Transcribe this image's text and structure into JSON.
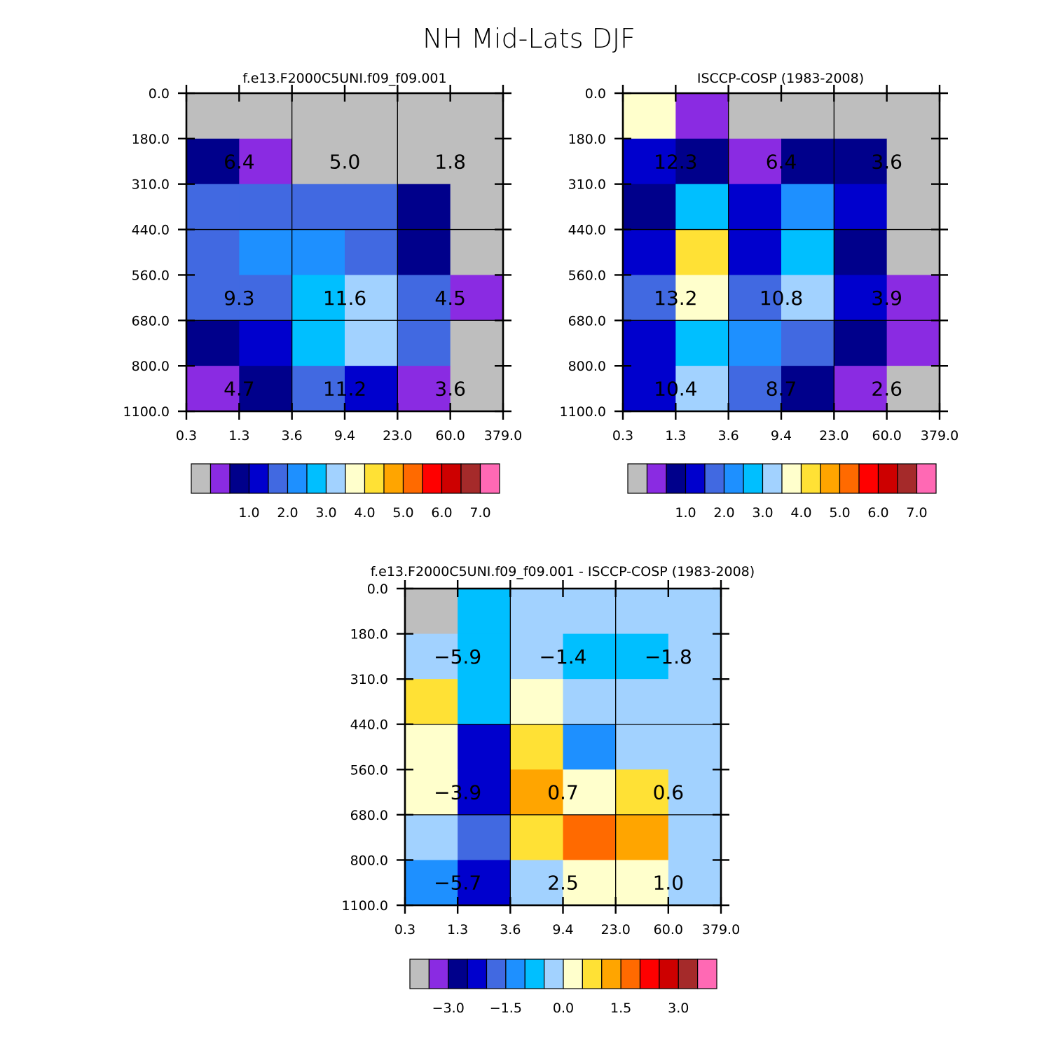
{
  "figure": {
    "title": "NH Mid-Lats DJF"
  },
  "x_tick_labels": [
    "0.3",
    "1.3",
    "3.6",
    "9.4",
    "23.0",
    "60.0",
    "379.0"
  ],
  "y_tick_labels": [
    "0.0",
    "180.0",
    "310.0",
    "440.0",
    "560.0",
    "680.0",
    "800.0",
    "1100.0"
  ],
  "palette": [
    "#bebebe",
    "#8a2be2",
    "#00008b",
    "#0000cd",
    "#4169e1",
    "#1e90ff",
    "#00bfff",
    "#a2d2ff",
    "#ffffcc",
    "#ffe135",
    "#ffa500",
    "#ff6a00",
    "#ff0000",
    "#cd0000",
    "#a52a2a",
    "#ff69b4"
  ],
  "chart_data": [
    {
      "type": "heatmap",
      "title": "f.e13.F2000C5UNI.f09_f09.001",
      "xlabel": "",
      "ylabel": "",
      "x_bins": [
        "0.3",
        "1.3",
        "3.6",
        "9.4",
        "23.0",
        "60.0",
        "379.0"
      ],
      "y_bins": [
        "0.0",
        "180.0",
        "310.0",
        "440.0",
        "560.0",
        "680.0",
        "800.0",
        "1100.0"
      ],
      "cell_color_index": [
        [
          0,
          0,
          0,
          0,
          0,
          0
        ],
        [
          2,
          1,
          0,
          0,
          0,
          0
        ],
        [
          4,
          4,
          4,
          4,
          2,
          0
        ],
        [
          4,
          5,
          5,
          4,
          2,
          0
        ],
        [
          4,
          4,
          6,
          7,
          4,
          1
        ],
        [
          2,
          3,
          6,
          7,
          4,
          0
        ],
        [
          1,
          2,
          4,
          3,
          1,
          0
        ]
      ],
      "block_labels": [
        [
          "6.4",
          "5.0",
          "1.8"
        ],
        [
          "9.3",
          "11.6",
          "4.5"
        ],
        [
          "4.7",
          "11.2",
          "3.6"
        ]
      ],
      "colorbar_labels": [
        "1.0",
        "2.0",
        "3.0",
        "4.0",
        "5.0",
        "6.0",
        "7.0"
      ]
    },
    {
      "type": "heatmap",
      "title": "ISCCP-COSP (1983-2008)",
      "xlabel": "",
      "ylabel": "",
      "x_bins": [
        "0.3",
        "1.3",
        "3.6",
        "9.4",
        "23.0",
        "60.0",
        "379.0"
      ],
      "y_bins": [
        "0.0",
        "180.0",
        "310.0",
        "440.0",
        "560.0",
        "680.0",
        "800.0",
        "1100.0"
      ],
      "cell_color_index": [
        [
          8,
          1,
          0,
          0,
          0,
          0
        ],
        [
          3,
          2,
          1,
          2,
          2,
          0
        ],
        [
          2,
          6,
          3,
          5,
          3,
          0
        ],
        [
          3,
          9,
          3,
          6,
          2,
          0
        ],
        [
          4,
          8,
          4,
          7,
          3,
          1
        ],
        [
          3,
          6,
          5,
          4,
          2,
          1
        ],
        [
          3,
          7,
          4,
          2,
          1,
          0
        ]
      ],
      "block_labels": [
        [
          "12.3",
          "6.4",
          "3.6"
        ],
        [
          "13.2",
          "10.8",
          "3.9"
        ],
        [
          "10.4",
          "8.7",
          "2.6"
        ]
      ],
      "colorbar_labels": [
        "1.0",
        "2.0",
        "3.0",
        "4.0",
        "5.0",
        "6.0",
        "7.0"
      ]
    },
    {
      "type": "heatmap",
      "title": "f.e13.F2000C5UNI.f09_f09.001 - ISCCP-COSP (1983-2008)",
      "xlabel": "",
      "ylabel": "",
      "x_bins": [
        "0.3",
        "1.3",
        "3.6",
        "9.4",
        "23.0",
        "60.0",
        "379.0"
      ],
      "y_bins": [
        "0.0",
        "180.0",
        "310.0",
        "440.0",
        "560.0",
        "680.0",
        "800.0",
        "1100.0"
      ],
      "cell_color_index": [
        [
          0,
          6,
          7,
          7,
          7,
          7
        ],
        [
          7,
          6,
          7,
          6,
          6,
          7
        ],
        [
          9,
          6,
          8,
          7,
          7,
          7
        ],
        [
          8,
          3,
          9,
          5,
          7,
          7
        ],
        [
          8,
          3,
          10,
          8,
          9,
          7
        ],
        [
          7,
          4,
          9,
          11,
          10,
          7
        ],
        [
          5,
          3,
          7,
          8,
          8,
          7
        ]
      ],
      "block_labels": [
        [
          "-5.9",
          "-1.4",
          "-1.8"
        ],
        [
          "-3.9",
          "0.7",
          "0.6"
        ],
        [
          "-5.7",
          "2.5",
          "1.0"
        ]
      ],
      "colorbar_labels": [
        "-3.0",
        "-1.5",
        "0.0",
        "1.5",
        "3.0"
      ]
    }
  ]
}
